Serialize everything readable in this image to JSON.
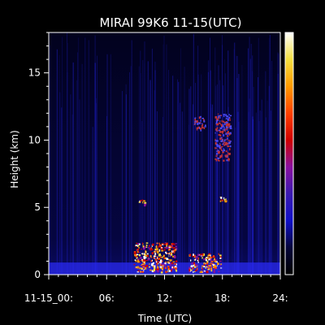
{
  "chart_data": {
    "type": "heatmap",
    "title": "MIRAI 99K6 11-15(UTC)",
    "xlabel": "Time (UTC)",
    "ylabel": "Height (km)",
    "xlim": [
      0,
      24
    ],
    "ylim": [
      0,
      18
    ],
    "x_tick_labels": [
      {
        "x": 0,
        "label": "11-15_00:"
      },
      {
        "x": 6,
        "label": "06:"
      },
      {
        "x": 12,
        "label": "12:"
      },
      {
        "x": 18,
        "label": "18:"
      },
      {
        "x": 24,
        "label": "24:"
      }
    ],
    "y_ticks": [
      0,
      5,
      10,
      15
    ],
    "y_tick_labels": [
      "0",
      "5",
      "10",
      "15"
    ],
    "colorbar": {
      "colors": [
        "#000000",
        "#06063a",
        "#1010c8",
        "#3a1ab0",
        "#8a10a0",
        "#d00000",
        "#ff4000",
        "#ff9a00",
        "#f4e040",
        "#ffffff"
      ]
    },
    "features": [
      {
        "name": "surface layer",
        "x": [
          0,
          24
        ],
        "y": [
          0,
          0.9
        ]
      },
      {
        "name": "low cloud",
        "x": [
          8.8,
          13.2
        ],
        "y": [
          0.2,
          2.4
        ]
      },
      {
        "name": "low cloud",
        "x": [
          14.5,
          17.8
        ],
        "y": [
          0.2,
          1.6
        ]
      },
      {
        "name": "mid cloud",
        "x": [
          9.2,
          9.9
        ],
        "y": [
          5.2,
          5.6
        ]
      },
      {
        "name": "mid cloud",
        "x": [
          17.5,
          18.6
        ],
        "y": [
          5.5,
          5.8
        ]
      },
      {
        "name": "high cloud",
        "x": [
          15.0,
          16.2
        ],
        "y": [
          10.8,
          11.8
        ]
      },
      {
        "name": "high cloud",
        "x": [
          17.2,
          18.8
        ],
        "y": [
          8.5,
          12.0
        ]
      }
    ]
  }
}
